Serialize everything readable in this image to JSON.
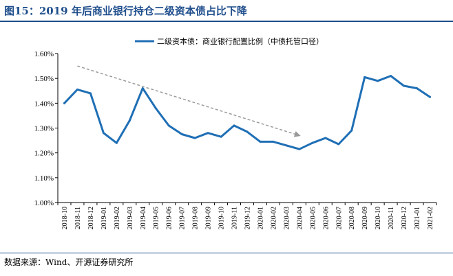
{
  "header": {
    "title": "图15：2019 年后商业银行持仓二级资本债占比下降"
  },
  "footer": {
    "source": "数据来源：Wind、开源证券研究所"
  },
  "colors": {
    "accent": "#1f4e8c",
    "series": "#1f6fb5",
    "trend_arrow": "#9a9a9a"
  },
  "chart_data": {
    "type": "line",
    "title": "",
    "xlabel": "",
    "ylabel": "",
    "ylim": [
      1.0,
      1.6
    ],
    "y_ticks": [
      "1.00%",
      "1.10%",
      "1.20%",
      "1.30%",
      "1.40%",
      "1.50%",
      "1.60%"
    ],
    "y_tick_values": [
      1.0,
      1.1,
      1.2,
      1.3,
      1.4,
      1.5,
      1.6
    ],
    "grid": false,
    "legend_position": "top",
    "x": [
      "2018-10",
      "2018-11",
      "2018-12",
      "2019-01",
      "2019-02",
      "2019-03",
      "2019-04",
      "2019-05",
      "2019-06",
      "2019-07",
      "2019-08",
      "2019-09",
      "2019-10",
      "2019-11",
      "2019-12",
      "2020-01",
      "2020-02",
      "2020-03",
      "2020-04",
      "2020-05",
      "2020-06",
      "2020-07",
      "2020-08",
      "2020-09",
      "2020-10",
      "2020-11",
      "2020-12",
      "2021-01",
      "2021-02"
    ],
    "series": [
      {
        "name": "二级资本债：商业银行配置比例（中债托管口径）",
        "values": [
          1.4,
          1.455,
          1.44,
          1.28,
          1.24,
          1.33,
          1.46,
          1.38,
          1.31,
          1.275,
          1.26,
          1.28,
          1.265,
          1.31,
          1.285,
          1.245,
          1.245,
          1.23,
          1.215,
          1.24,
          1.26,
          1.235,
          1.29,
          1.505,
          1.49,
          1.51,
          1.47,
          1.46,
          1.425
        ]
      }
    ],
    "annotations": [
      {
        "type": "arrow",
        "style": "dashed",
        "from": {
          "x": "2018-11",
          "y": 1.55
        },
        "to": {
          "x": "2020-04",
          "y": 1.27
        }
      }
    ]
  }
}
